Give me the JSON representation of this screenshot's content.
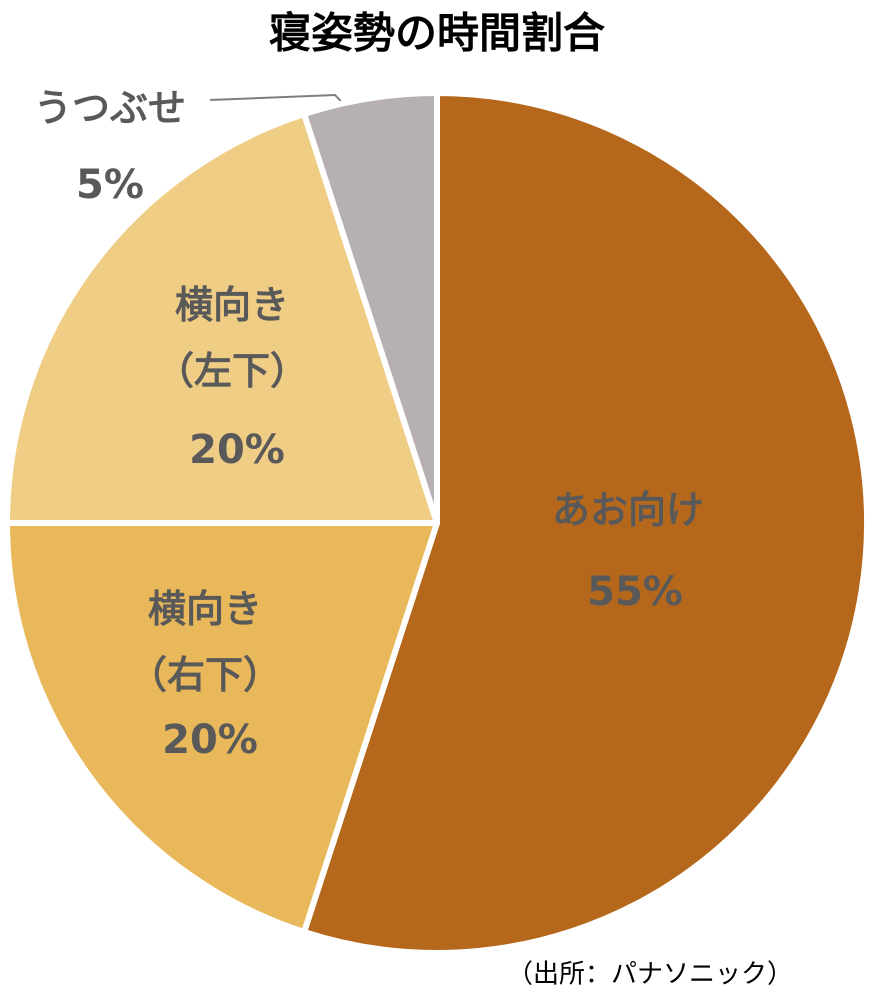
{
  "chart_data": {
    "type": "pie",
    "title": "寝姿勢の時間割合",
    "source": "（出所：パナソニック）",
    "categories": [
      "あお向け",
      "横向き\n（右下）",
      "横向き\n（左下）",
      "うつぶせ"
    ],
    "values": [
      55,
      20,
      20,
      5
    ],
    "value_labels": [
      "55%",
      "20%",
      "20%",
      "5%"
    ],
    "colors": [
      "#b5681b",
      "#e8b85a",
      "#f0cd85",
      "#b7b0b2"
    ]
  }
}
